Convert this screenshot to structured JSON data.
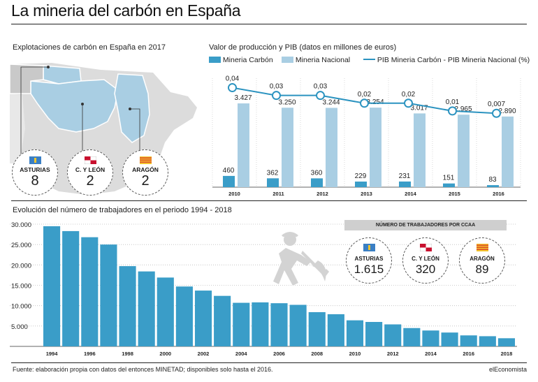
{
  "title": "La mineria del carbón en España",
  "map": {
    "title": "Explotaciones de carbón en España en 2017",
    "regions": [
      {
        "name": "ASTURIAS",
        "value": "8"
      },
      {
        "name": "C. Y LEÓN",
        "value": "2"
      },
      {
        "name": "ARAGÓN",
        "value": "2"
      }
    ]
  },
  "employment_regions": {
    "banner": "NÚMERO DE TRABAJADORES POR CCAA",
    "regions": [
      {
        "name": "ASTURIAS",
        "value": "1.615"
      },
      {
        "name": "C. Y LEÓN",
        "value": "320"
      },
      {
        "name": "ARAGÓN",
        "value": "89"
      }
    ]
  },
  "colors": {
    "dark_blue": "#3a9dc8",
    "light_blue": "#a9cee3",
    "line": "#2b93c0",
    "map_highlight": "#a9cee3",
    "map_land": "#dcdcdc",
    "asturias_flag": "#3a7fc4",
    "aragon_flag_red": "#d8342a",
    "aragon_flag_yellow": "#f3c52c"
  },
  "chart_data": [
    {
      "type": "bar",
      "title": "Valor de producción y PIB (datos en millones de euros)",
      "categories": [
        "2010",
        "2011",
        "2012",
        "2013",
        "2014",
        "2015",
        "2016"
      ],
      "series": [
        {
          "name": "Mineria Carbón",
          "values": [
            460,
            362,
            360,
            229,
            231,
            151,
            83
          ],
          "labels": [
            "460",
            "362",
            "360",
            "229",
            "231",
            "151",
            "83"
          ]
        },
        {
          "name": "Mineria Nacional",
          "values": [
            3427,
            3250,
            3244,
            3254,
            3017,
            2965,
            2890
          ],
          "labels": [
            "3.427",
            "3.250",
            "3.244",
            "3.254",
            "3.017",
            "2.965",
            "2.890"
          ]
        },
        {
          "name": "PIB Mineria Carbón - PIB Mineria Nacional (%)",
          "type": "line",
          "values": [
            0.04,
            0.03,
            0.03,
            0.02,
            0.02,
            0.01,
            0.007
          ],
          "labels": [
            "0,04",
            "0,03",
            "0,03",
            "0,02",
            "0,02",
            "0,01",
            "0,007"
          ]
        }
      ],
      "ylim": [
        0,
        3600
      ],
      "line_ylim": [
        0,
        0.045
      ]
    },
    {
      "type": "bar",
      "title": "Evolución del número de trabajadores en el periodo 1994 - 2018",
      "x": [
        1994,
        1995,
        1996,
        1997,
        1998,
        1999,
        2000,
        2001,
        2002,
        2003,
        2004,
        2005,
        2006,
        2007,
        2008,
        2009,
        2010,
        2011,
        2012,
        2013,
        2014,
        2015,
        2016,
        2017,
        2018
      ],
      "values": [
        29500,
        28300,
        26800,
        25000,
        19700,
        18400,
        16900,
        14700,
        13700,
        12400,
        10700,
        10800,
        10600,
        10200,
        8400,
        7900,
        6400,
        6000,
        5400,
        4500,
        3900,
        3400,
        2700,
        2500,
        2000
      ],
      "tick_labels_x": [
        "1994",
        "1996",
        "1998",
        "2000",
        "2002",
        "2004",
        "2006",
        "2008",
        "2010",
        "2012",
        "2014",
        "2016",
        "2018"
      ],
      "yticks": [
        "30.000",
        "25.000",
        "20.000",
        "15.000",
        "10.000",
        "5.000"
      ],
      "ylim": [
        0,
        30000
      ],
      "grid": true
    }
  ],
  "footer": {
    "source": "Fuente: elaboración propia con datos del entonces MINETAD; disponibles solo hasta el 2016.",
    "brand": "elEconomista"
  }
}
